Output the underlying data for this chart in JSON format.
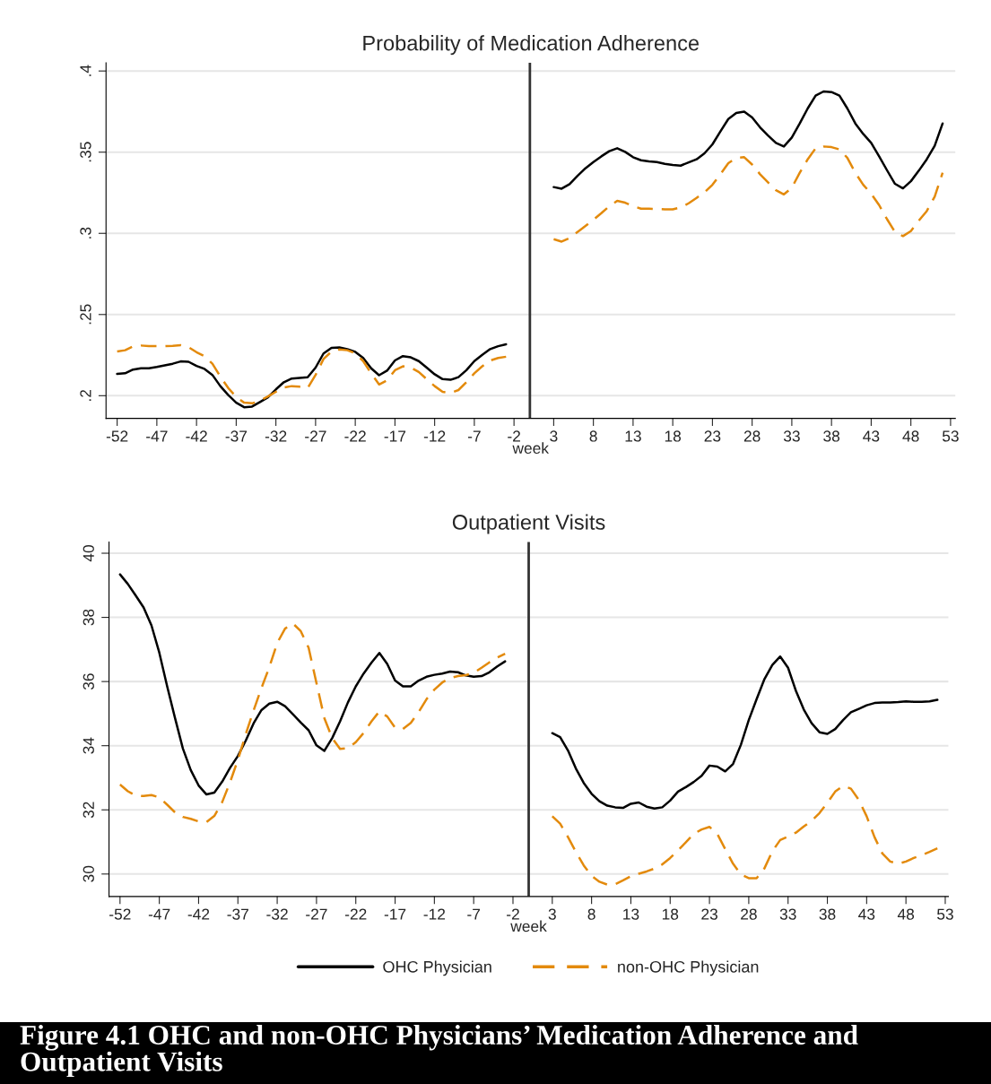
{
  "chart_data": [
    {
      "type": "line",
      "title": "Probability of Medication Adherence",
      "xlabel": "week",
      "x": [
        -52,
        -51,
        -50,
        -49,
        -48,
        -47,
        -46,
        -45,
        -44,
        -43,
        -42,
        -41,
        -40,
        -39,
        -38,
        -37,
        -36,
        -35,
        -34,
        -33,
        -32,
        -31,
        -30,
        -29,
        -28,
        -27,
        -26,
        -25,
        -24,
        -23,
        -22,
        -21,
        -20,
        -19,
        -18,
        -17,
        -16,
        -15,
        -14,
        -13,
        -12,
        -11,
        -10,
        -9,
        -8,
        -7,
        -6,
        -5,
        -4,
        -3,
        0,
        3,
        4,
        5,
        6,
        7,
        8,
        9,
        10,
        11,
        12,
        13,
        14,
        15,
        16,
        17,
        18,
        19,
        20,
        21,
        22,
        23,
        24,
        25,
        26,
        27,
        28,
        29,
        30,
        31,
        32,
        33,
        34,
        35,
        36,
        37,
        38,
        39,
        40,
        41,
        42,
        43,
        44,
        45,
        46,
        47,
        48,
        49,
        50,
        51,
        52
      ],
      "series": [
        {
          "color": "#000000",
          "line_style": "solid",
          "values": [
            0.2134,
            0.2138,
            0.2161,
            0.2169,
            0.2169,
            0.2177,
            0.2187,
            0.2197,
            0.2211,
            0.2209,
            0.2183,
            0.2165,
            0.2128,
            0.2059,
            0.2004,
            0.1957,
            0.1929,
            0.1933,
            0.1961,
            0.199,
            0.2039,
            0.2083,
            0.2106,
            0.211,
            0.2114,
            0.2173,
            0.226,
            0.2295,
            0.2297,
            0.2287,
            0.227,
            0.2232,
            0.2169,
            0.2126,
            0.2154,
            0.2217,
            0.2244,
            0.2236,
            0.2213,
            0.2173,
            0.2132,
            0.2102,
            0.2098,
            0.2114,
            0.2157,
            0.2213,
            0.2252,
            0.2287,
            0.2305,
            0.2317,
            null,
            0.3285,
            0.3275,
            0.3303,
            0.3354,
            0.3401,
            0.3439,
            0.3474,
            0.3506,
            0.3524,
            0.3502,
            0.3469,
            0.345,
            0.3443,
            0.3439,
            0.3428,
            0.3421,
            0.3417,
            0.3437,
            0.3456,
            0.3493,
            0.3548,
            0.3627,
            0.3704,
            0.3741,
            0.375,
            0.3714,
            0.3653,
            0.3603,
            0.3557,
            0.3535,
            0.359,
            0.3677,
            0.3769,
            0.3848,
            0.3874,
            0.387,
            0.3848,
            0.3769,
            0.3677,
            0.3612,
            0.3557,
            0.3474,
            0.3388,
            0.3305,
            0.3277,
            0.3321,
            0.3386,
            0.3456,
            0.3539,
            0.3677
          ]
        },
        {
          "color": "#e38a0c",
          "line_style": "dashed",
          "values": [
            0.2272,
            0.228,
            0.2303,
            0.2309,
            0.2305,
            0.2305,
            0.2305,
            0.2307,
            0.2311,
            0.2299,
            0.2268,
            0.2244,
            0.2197,
            0.2118,
            0.2047,
            0.1992,
            0.1957,
            0.1953,
            0.1969,
            0.1996,
            0.2024,
            0.2051,
            0.2059,
            0.2055,
            0.2047,
            0.2128,
            0.2226,
            0.2272,
            0.2285,
            0.228,
            0.2262,
            0.2213,
            0.2138,
            0.2069,
            0.2094,
            0.2157,
            0.2181,
            0.2173,
            0.2146,
            0.2102,
            0.2059,
            0.2024,
            0.2016,
            0.2035,
            0.2083,
            0.2138,
            0.2181,
            0.2217,
            0.2232,
            0.224,
            null,
            0.2964,
            0.2949,
            0.2971,
            0.3008,
            0.3045,
            0.3084,
            0.3124,
            0.3167,
            0.32,
            0.3189,
            0.3167,
            0.3152,
            0.3152,
            0.315,
            0.3148,
            0.3148,
            0.3159,
            0.3185,
            0.3218,
            0.3253,
            0.3299,
            0.3364,
            0.3432,
            0.3465,
            0.3469,
            0.3424,
            0.3364,
            0.3314,
            0.3266,
            0.324,
            0.3281,
            0.3373,
            0.3456,
            0.3524,
            0.3535,
            0.3531,
            0.3517,
            0.3465,
            0.3373,
            0.3299,
            0.3244,
            0.3174,
            0.3087,
            0.3008,
            0.2983,
            0.3014,
            0.3078,
            0.3137,
            0.3226,
            0.3373
          ]
        }
      ],
      "xlim": [
        -53.4,
        53.6
      ],
      "xticks": [
        -52,
        -47,
        -42,
        -37,
        -32,
        -27,
        -22,
        -17,
        -12,
        -7,
        -2,
        3,
        8,
        13,
        18,
        23,
        28,
        33,
        38,
        43,
        48,
        53
      ],
      "ylim": [
        0.186,
        0.405
      ],
      "yticks": [
        {
          "value": 0.2,
          "label": ".2"
        },
        {
          "value": 0.25,
          "label": ".25"
        },
        {
          "value": 0.3,
          "label": ".3"
        },
        {
          "value": 0.35,
          "label": ".35"
        },
        {
          "value": 0.4,
          "label": ".4"
        }
      ],
      "grid": "y",
      "ref_lines": [
        {
          "axis": "x",
          "value": 0,
          "color": "#333333"
        }
      ]
    },
    {
      "type": "line",
      "title": "Outpatient Visits",
      "xlabel": "week",
      "x": [
        -52,
        -51,
        -50,
        -49,
        -48,
        -47,
        -46,
        -45,
        -44,
        -43,
        -42,
        -41,
        -40,
        -39,
        -38,
        -37,
        -36,
        -35,
        -34,
        -33,
        -32,
        -31,
        -30,
        -29,
        -28,
        -27,
        -26,
        -25,
        -24,
        -23,
        -22,
        -21,
        -20,
        -19,
        -18,
        -17,
        -16,
        -15,
        -14,
        -13,
        -12,
        -11,
        -10,
        -9,
        -8,
        -7,
        -6,
        -5,
        -4,
        -3,
        0,
        3,
        4,
        5,
        6,
        7,
        8,
        9,
        10,
        11,
        12,
        13,
        14,
        15,
        16,
        17,
        18,
        19,
        20,
        21,
        22,
        23,
        24,
        25,
        26,
        27,
        28,
        29,
        30,
        31,
        32,
        33,
        34,
        35,
        36,
        37,
        38,
        39,
        40,
        41,
        42,
        43,
        44,
        45,
        46,
        47,
        48,
        49,
        50,
        51,
        52
      ],
      "series": [
        {
          "name": "OHC Physician",
          "color": "#000000",
          "line_style": "solid",
          "values": [
            39.34,
            39.04,
            38.68,
            38.31,
            37.75,
            36.9,
            35.85,
            34.86,
            33.91,
            33.24,
            32.76,
            32.48,
            32.54,
            32.88,
            33.31,
            33.68,
            34.16,
            34.7,
            35.11,
            35.31,
            35.37,
            35.23,
            34.98,
            34.72,
            34.48,
            34.01,
            33.84,
            34.24,
            34.76,
            35.35,
            35.85,
            36.25,
            36.59,
            36.89,
            36.55,
            36.03,
            35.85,
            35.85,
            36.03,
            36.15,
            36.21,
            36.25,
            36.31,
            36.29,
            36.19,
            36.15,
            36.17,
            36.29,
            36.47,
            36.63,
            null,
            34.39,
            34.27,
            33.85,
            33.29,
            32.84,
            32.5,
            32.27,
            32.13,
            32.08,
            32.06,
            32.19,
            32.23,
            32.1,
            32.04,
            32.08,
            32.29,
            32.57,
            32.71,
            32.87,
            33.06,
            33.38,
            33.35,
            33.2,
            33.43,
            34.03,
            34.8,
            35.45,
            36.08,
            36.52,
            36.78,
            36.43,
            35.71,
            35.13,
            34.7,
            34.42,
            34.37,
            34.52,
            34.8,
            35.04,
            35.15,
            35.26,
            35.33,
            35.35,
            35.35,
            35.36,
            35.38,
            35.37,
            35.37,
            35.38,
            35.43
          ]
        },
        {
          "name": "non-OHC Physician",
          "color": "#e38a0c",
          "line_style": "dashed",
          "values": [
            32.79,
            32.58,
            32.44,
            32.43,
            32.46,
            32.39,
            32.16,
            31.92,
            31.78,
            31.72,
            31.64,
            31.62,
            31.81,
            32.24,
            32.86,
            33.56,
            34.36,
            35.1,
            35.8,
            36.45,
            37.2,
            37.65,
            37.81,
            37.57,
            37.05,
            35.95,
            34.86,
            34.24,
            33.9,
            33.92,
            34.11,
            34.4,
            34.76,
            35.07,
            34.91,
            34.56,
            34.52,
            34.71,
            35.05,
            35.45,
            35.75,
            35.97,
            36.11,
            36.17,
            36.2,
            36.27,
            36.43,
            36.6,
            36.75,
            36.87,
            null,
            31.8,
            31.57,
            31.15,
            30.69,
            30.27,
            29.94,
            29.76,
            29.67,
            29.68,
            29.8,
            29.93,
            30.01,
            30.08,
            30.17,
            30.3,
            30.5,
            30.74,
            30.99,
            31.25,
            31.39,
            31.47,
            31.25,
            30.78,
            30.32,
            29.99,
            29.87,
            29.87,
            30.18,
            30.71,
            31.06,
            31.17,
            31.29,
            31.48,
            31.66,
            31.9,
            32.22,
            32.57,
            32.75,
            32.66,
            32.31,
            31.8,
            31.15,
            30.64,
            30.39,
            30.32,
            30.39,
            30.5,
            30.59,
            30.69,
            30.8
          ]
        }
      ],
      "xlim": [
        -53.4,
        53.4
      ],
      "xticks": [
        -52,
        -47,
        -42,
        -37,
        -32,
        -27,
        -22,
        -17,
        -12,
        -7,
        -2,
        3,
        8,
        13,
        18,
        23,
        28,
        33,
        38,
        43,
        48,
        53
      ],
      "ylim": [
        29.3,
        40.35
      ],
      "yticks": [
        30,
        32,
        34,
        36,
        38,
        40
      ],
      "grid": "y",
      "legend": "bottom",
      "ref_lines": [
        {
          "axis": "x",
          "value": 0,
          "color": "#333333"
        }
      ],
      "annotations": [
        "Figure 4.1 OHC and non-OHC Physicians’ Medication Adherence and Outpatient Visits"
      ]
    }
  ]
}
